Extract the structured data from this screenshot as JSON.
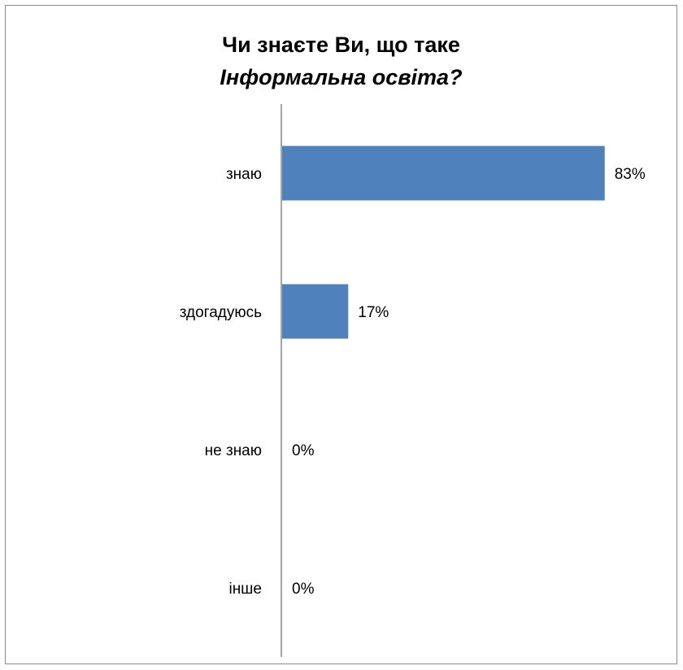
{
  "chart_data": {
    "type": "bar",
    "orientation": "horizontal",
    "title_line1": "Чи знаєте Ви, що таке",
    "title_line2": "Інформальна освіта?",
    "categories": [
      "знаю",
      "здогадуюсь",
      "не знаю",
      "інше"
    ],
    "values": [
      83,
      17,
      0,
      0
    ],
    "value_labels": [
      "83%",
      "17%",
      "0%",
      "0%"
    ],
    "xlim": [
      0,
      100
    ],
    "grid": false,
    "legend": "none",
    "bar_color": "#4f81bd"
  }
}
